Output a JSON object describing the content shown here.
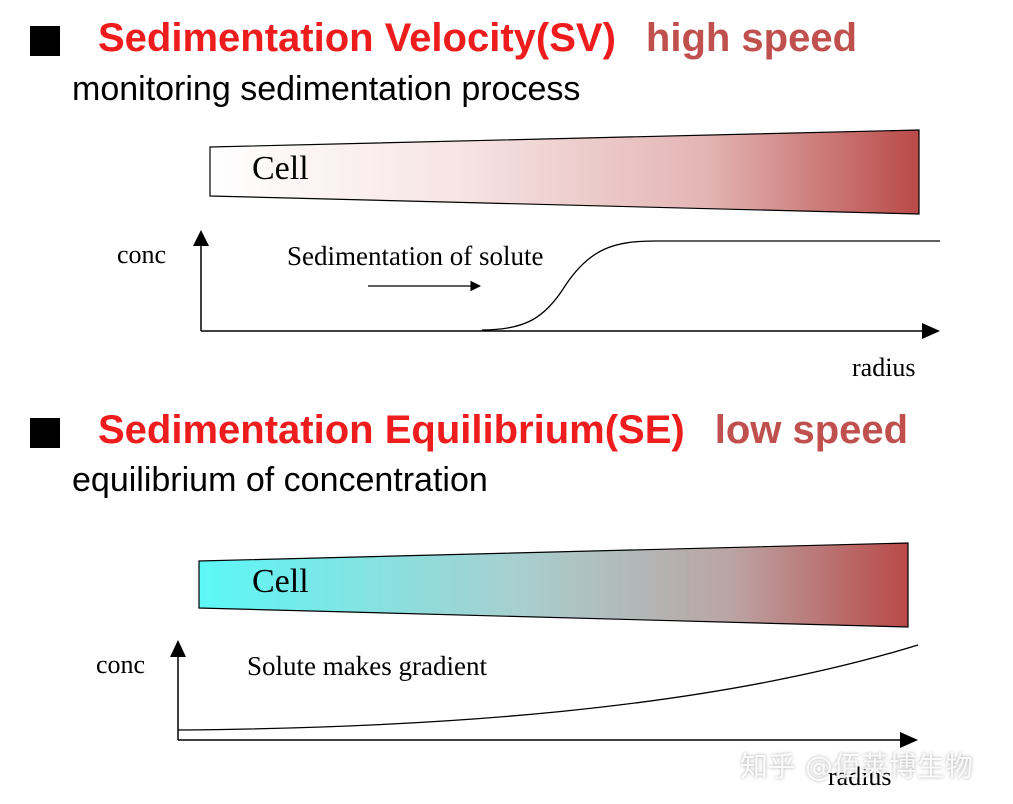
{
  "sv": {
    "title": "Sedimentation Velocity(SV)",
    "speed": "high speed",
    "subtitle": "monitoring sedimentation process",
    "cell_label": "Cell",
    "y_axis": "conc",
    "annotation": "Sedimentation of solute",
    "x_axis": "radius"
  },
  "se": {
    "title": "Sedimentation Equilibrium(SE)",
    "speed": "low speed",
    "subtitle": "equilibrium of concentration",
    "cell_label": "Cell",
    "y_axis": "conc",
    "annotation": "Solute makes gradient",
    "x_axis": "radius"
  },
  "watermark": "知乎 @佰莱博生物",
  "colors": {
    "title_red": "#ee1c1c",
    "speed_red": "#c0504d",
    "cell_dark_red": "#b94a48",
    "cell_cyan": "#5cf7f7"
  }
}
